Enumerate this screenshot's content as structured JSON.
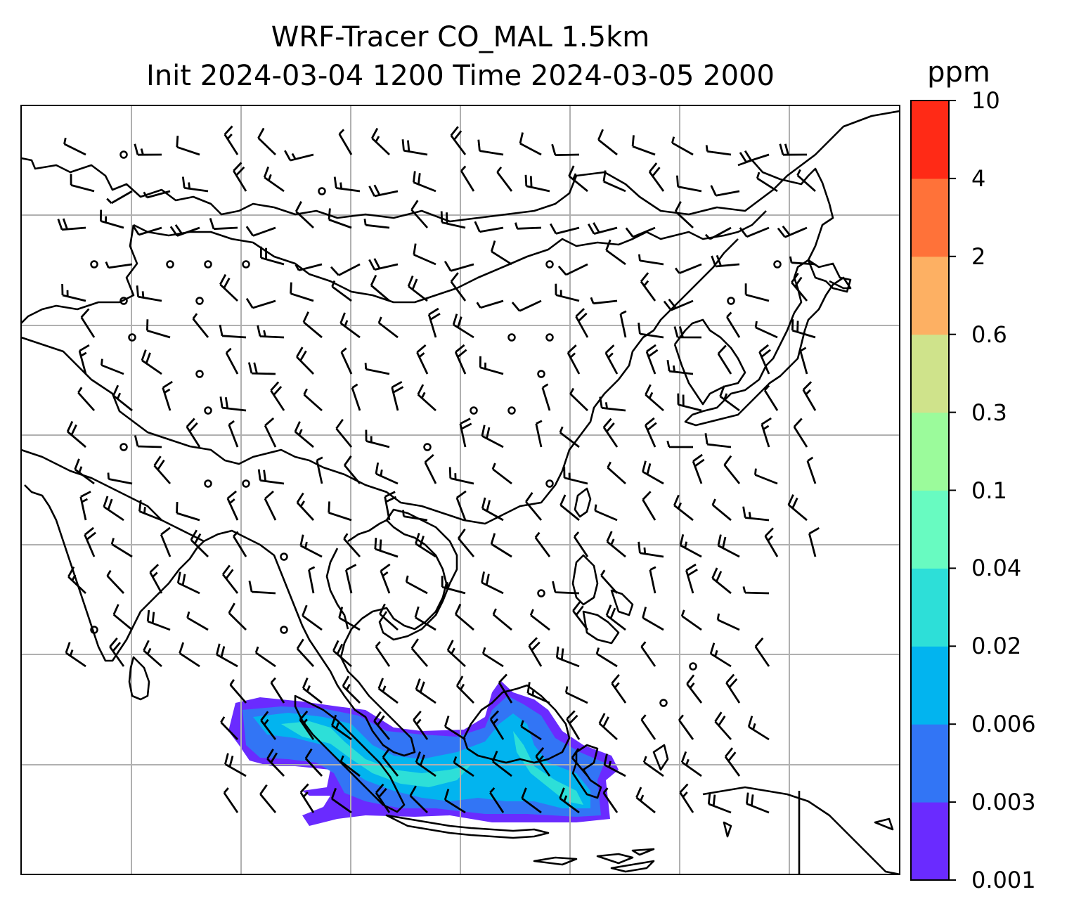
{
  "title": {
    "line1": "WRF-Tracer CO_MAL 1.5km",
    "line2": "Init 2024-03-04 1200 Time 2024-03-05 2000"
  },
  "colorbar": {
    "unit": "ppm",
    "levels": [
      "0.001",
      "0.003",
      "0.006",
      "0.02",
      "0.04",
      "0.1",
      "0.3",
      "0.6",
      "2",
      "4",
      "10"
    ],
    "colors": [
      "#6A2BFF",
      "#3275F5",
      "#02B4EF",
      "#2DDFD8",
      "#68FBC1",
      "#9BFB9B",
      "#CFE38B",
      "#FDB063",
      "#FF7239",
      "#FF2A16"
    ]
  },
  "map": {
    "features": [
      "coastlines",
      "gridlines",
      "wind-barbs",
      "calm-circles",
      "tracer-plume"
    ],
    "gridline_color": "#b0b0b0",
    "line_color": "#000000"
  }
}
